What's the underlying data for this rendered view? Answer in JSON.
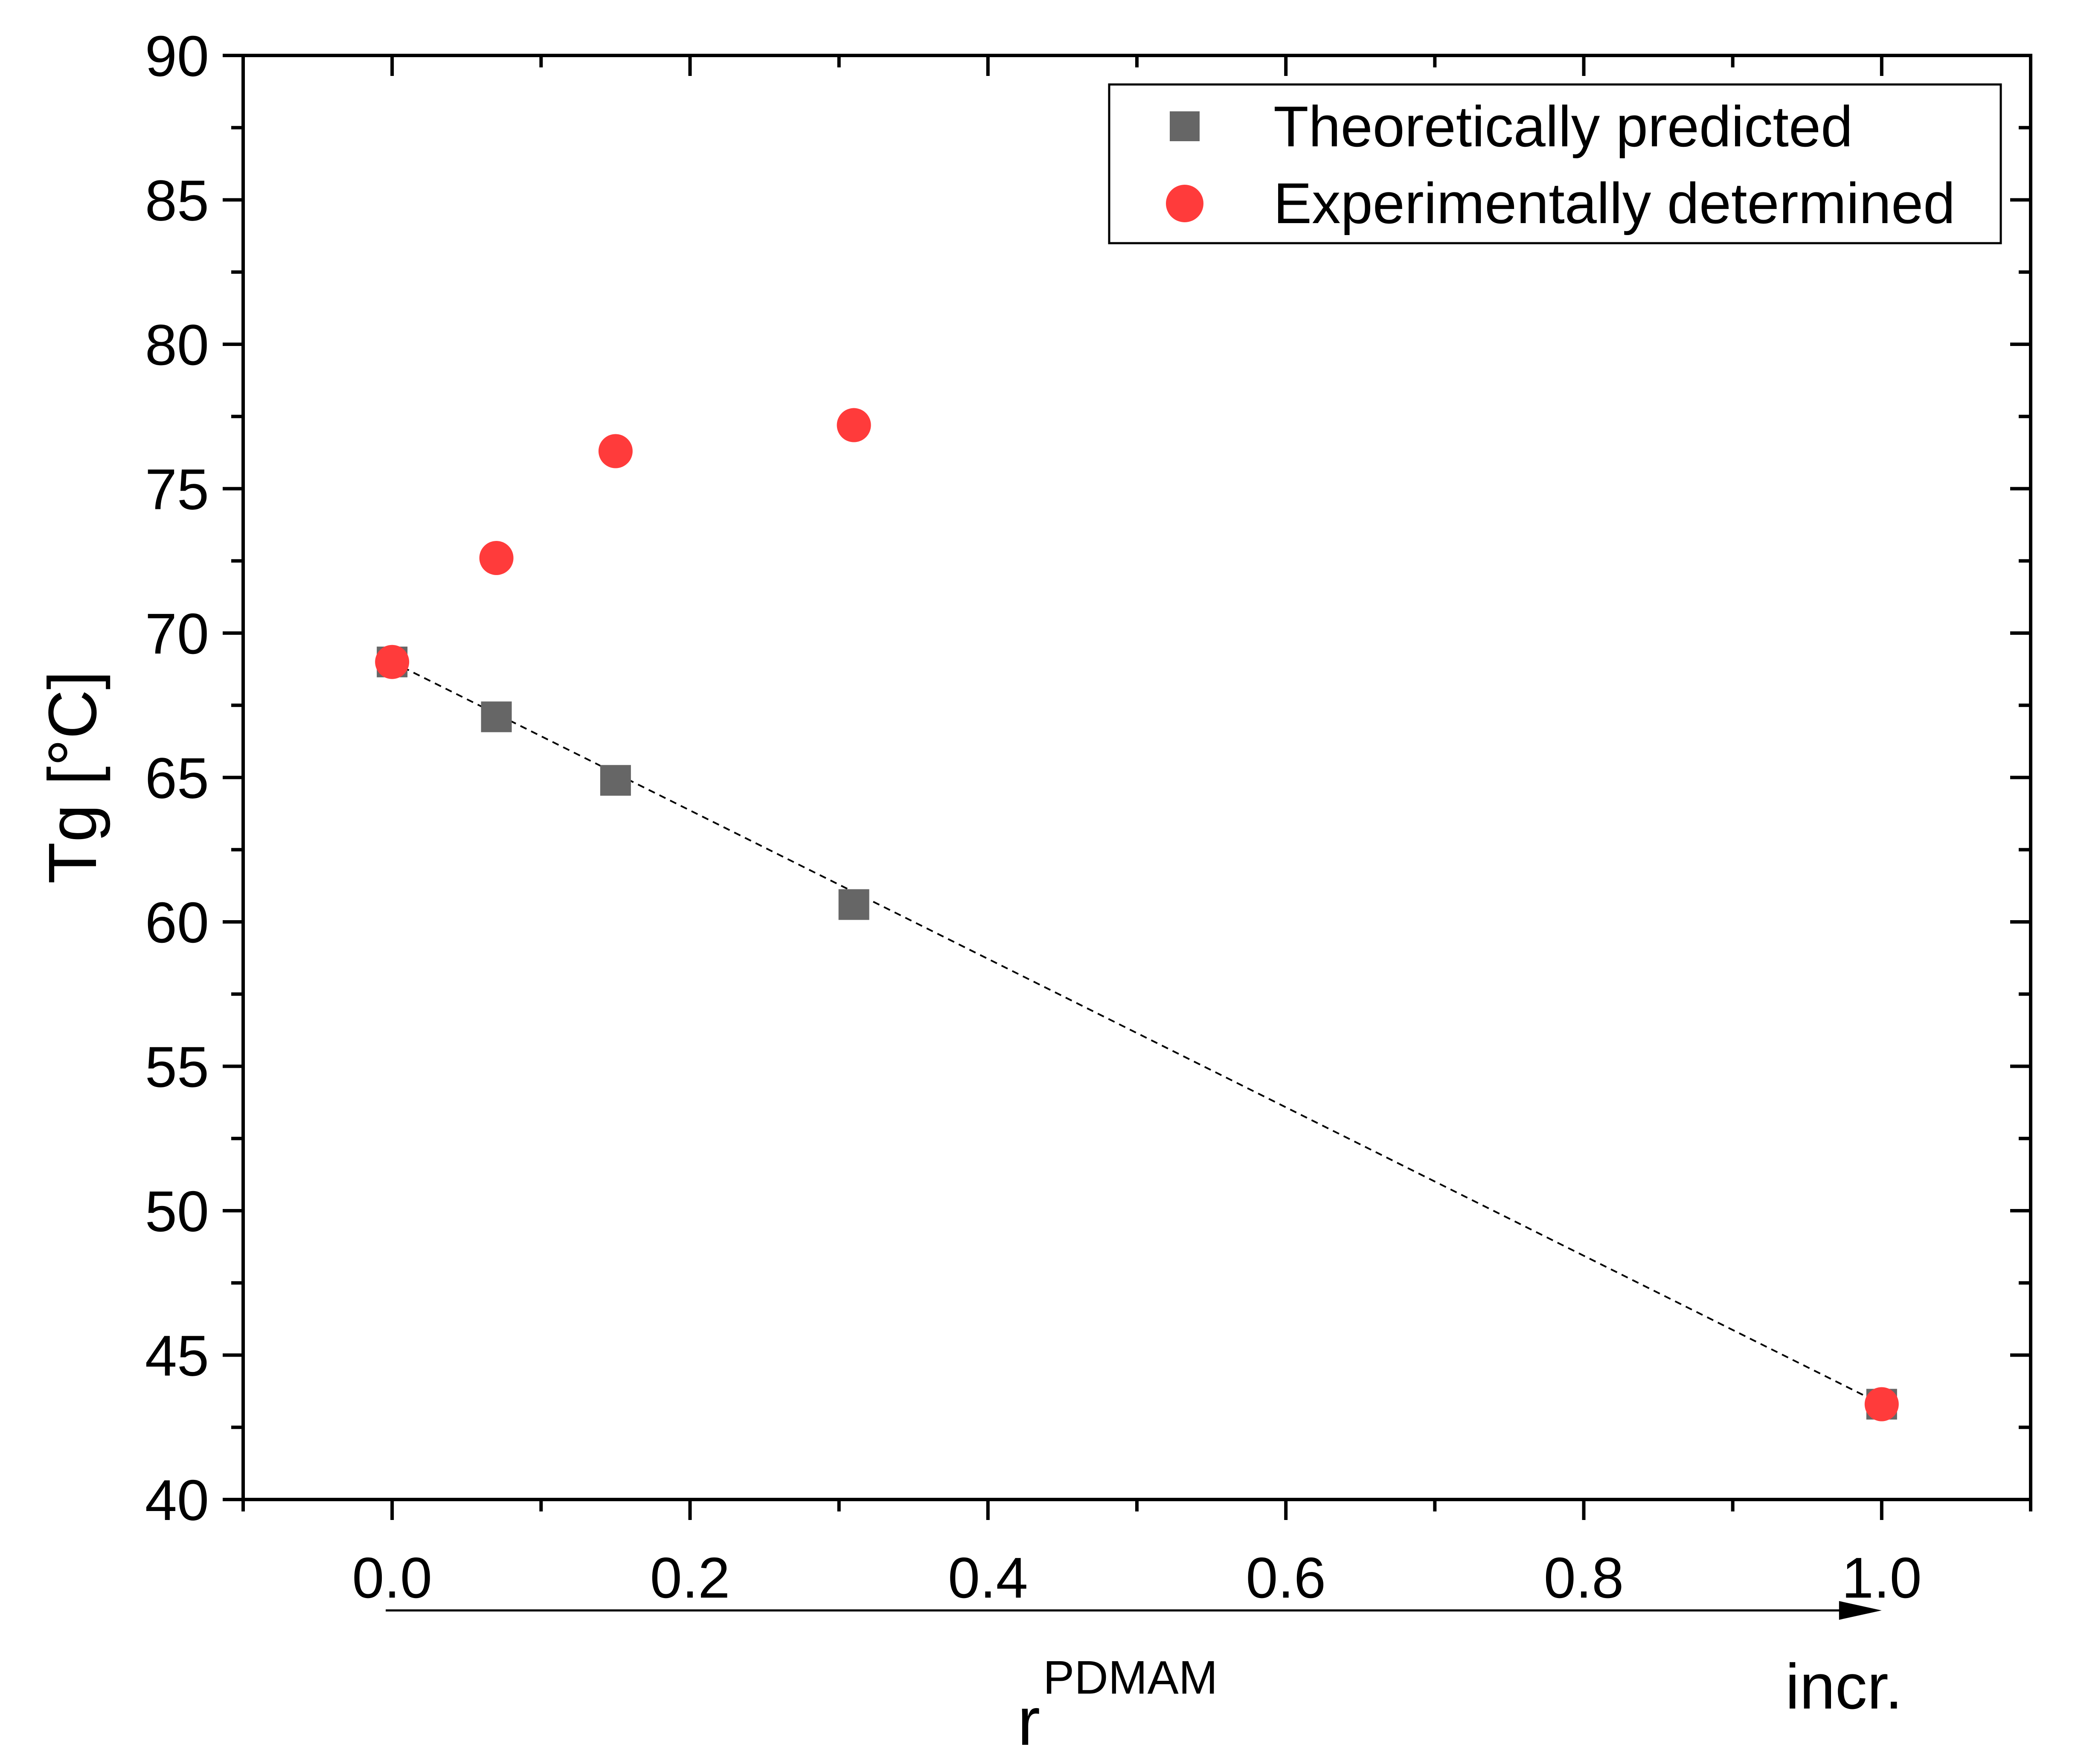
{
  "chart_data": {
    "type": "scatter",
    "title": "",
    "xlabel": "r",
    "xlabel_superscript": "PDMAM",
    "ylabel": "Tg [°C]",
    "xlim": [
      -0.1,
      1.1
    ],
    "ylim": [
      40,
      90
    ],
    "x_ticks": [
      0.0,
      0.2,
      0.4,
      0.6,
      0.8,
      1.0
    ],
    "x_tick_labels": [
      "0.0",
      "0.2",
      "0.4",
      "0.6",
      "0.8",
      "1.0"
    ],
    "y_ticks": [
      40,
      45,
      50,
      55,
      60,
      65,
      70,
      75,
      80,
      85,
      90
    ],
    "y_tick_labels": [
      "40",
      "45",
      "50",
      "55",
      "60",
      "65",
      "70",
      "75",
      "80",
      "85",
      "90"
    ],
    "grid": false,
    "legend_position": "top-right",
    "series": [
      {
        "name": "Theoretically predicted",
        "marker": "square",
        "color": "#666666",
        "x": [
          0.0,
          0.07,
          0.15,
          0.31,
          1.0
        ],
        "y": [
          69.0,
          67.1,
          64.9,
          60.6,
          43.3
        ]
      },
      {
        "name": "Experimentally determined",
        "marker": "circle",
        "color": "#ff3b3b",
        "x": [
          0.0,
          0.07,
          0.15,
          0.31,
          1.0
        ],
        "y": [
          69.0,
          72.6,
          76.3,
          77.2,
          43.3
        ]
      }
    ],
    "trend_line": {
      "style": "dashed",
      "color": "#000000",
      "x": [
        0.0,
        1.0
      ],
      "y": [
        69.0,
        43.3
      ]
    },
    "annotation": {
      "arrow_from_x": 0.0,
      "arrow_to_x": 1.0,
      "label": "incr."
    }
  }
}
